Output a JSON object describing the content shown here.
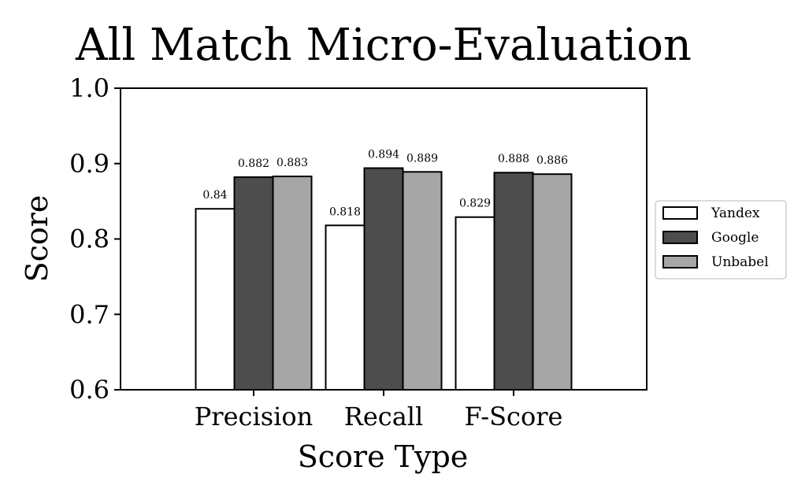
{
  "chart_data": {
    "type": "bar",
    "title": "All Match Micro-Evaluation",
    "xlabel": "Score Type",
    "ylabel": "Score",
    "ylim": [
      0.6,
      1.0
    ],
    "yticks": [
      0.6,
      0.7,
      0.8,
      0.9,
      1.0
    ],
    "ytick_labels": [
      "0.6",
      "0.7",
      "0.8",
      "0.9",
      "1.0"
    ],
    "categories": [
      "Precision",
      "Recall",
      "F-Score"
    ],
    "series": [
      {
        "name": "Yandex",
        "color": "#ffffff",
        "values": [
          0.84,
          0.818,
          0.829
        ],
        "labels": [
          "0.84",
          "0.818",
          "0.829"
        ]
      },
      {
        "name": "Google",
        "color": "#4d4d4d",
        "values": [
          0.882,
          0.894,
          0.888
        ],
        "labels": [
          "0.882",
          "0.894",
          "0.888"
        ]
      },
      {
        "name": "Unbabel",
        "color": "#a6a6a6",
        "values": [
          0.883,
          0.889,
          0.886
        ],
        "labels": [
          "0.883",
          "0.889",
          "0.886"
        ]
      }
    ],
    "grid": false,
    "legend_position": "right"
  }
}
